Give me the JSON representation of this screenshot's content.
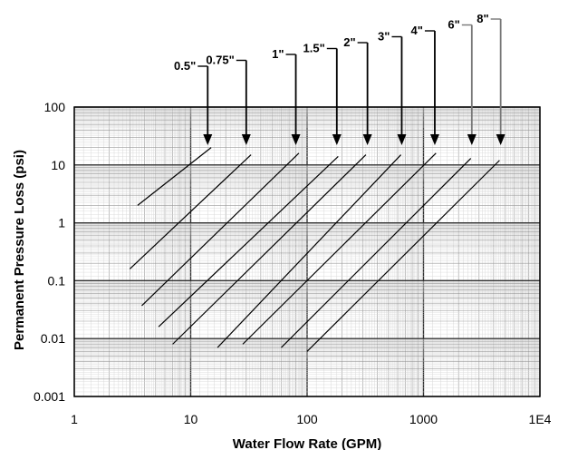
{
  "chart_data": {
    "type": "line",
    "xscale": "log",
    "yscale": "log",
    "xlim": [
      1,
      10000
    ],
    "ylim": [
      0.001,
      100
    ],
    "xlabel": "Water Flow Rate (GPM)",
    "ylabel": "Permanent Pressure Loss (psi)",
    "x_tick_labels": [
      "1",
      "10",
      "100",
      "1000",
      "1E4"
    ],
    "y_tick_labels": [
      "0.001",
      "0.01",
      "0.1",
      "1",
      "10",
      "100"
    ],
    "grid": true,
    "series": [
      {
        "name": "0.5\"",
        "points": [
          [
            3.5,
            2.0
          ],
          [
            15,
            20
          ]
        ],
        "arrow_at": 14
      },
      {
        "name": "0.75\"",
        "points": [
          [
            3,
            0.16
          ],
          [
            33,
            15
          ]
        ],
        "arrow_at": 30
      },
      {
        "name": "1\"",
        "points": [
          [
            3.8,
            0.037
          ],
          [
            85,
            16
          ]
        ],
        "arrow_at": 80
      },
      {
        "name": "1.5\"",
        "points": [
          [
            5.3,
            0.016
          ],
          [
            185,
            14
          ]
        ],
        "arrow_at": 180
      },
      {
        "name": "2\"",
        "points": [
          [
            7,
            0.008
          ],
          [
            320,
            15
          ]
        ],
        "arrow_at": 330
      },
      {
        "name": "3\"",
        "points": [
          [
            17,
            0.007
          ],
          [
            640,
            15
          ]
        ],
        "arrow_at": 650
      },
      {
        "name": "4\"",
        "points": [
          [
            28,
            0.008
          ],
          [
            1280,
            16
          ]
        ],
        "arrow_at": 1250
      },
      {
        "name": "6\"",
        "points": [
          [
            60,
            0.007
          ],
          [
            2550,
            13
          ]
        ],
        "arrow_at": 2600
      },
      {
        "name": "8\"",
        "points": [
          [
            100,
            0.006
          ],
          [
            4500,
            12
          ]
        ],
        "arrow_at": 4600
      }
    ]
  }
}
